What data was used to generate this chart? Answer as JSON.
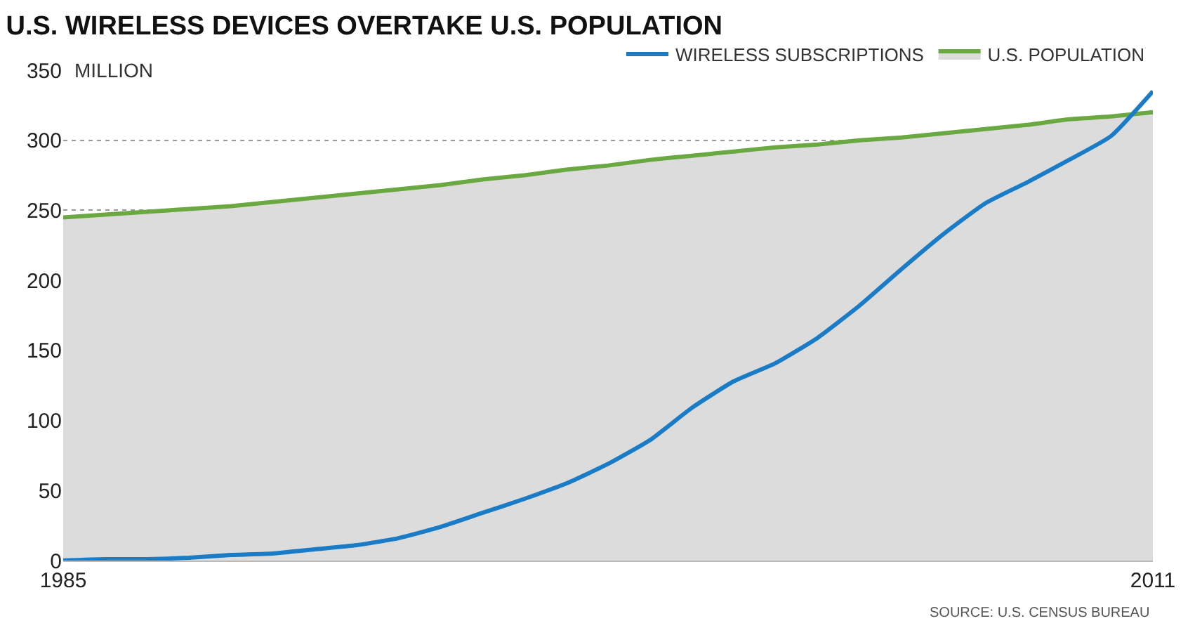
{
  "chart_data": {
    "type": "line",
    "title": "U.S. WIRELESS DEVICES OVERTAKE U.S. POPULATION",
    "ylabel": "MILLION",
    "x": [
      1985,
      1986,
      1987,
      1988,
      1989,
      1990,
      1991,
      1992,
      1993,
      1994,
      1995,
      1996,
      1997,
      1998,
      1999,
      2000,
      2001,
      2002,
      2003,
      2004,
      2005,
      2006,
      2007,
      2008,
      2009,
      2010,
      2011
    ],
    "series": [
      {
        "name": "WIRELESS SUBSCRIPTIONS",
        "color": "#1a7cc7",
        "values": [
          0,
          1,
          1,
          2,
          4,
          5,
          8,
          11,
          16,
          24,
          34,
          44,
          55,
          69,
          86,
          109,
          128,
          141,
          159,
          182,
          208,
          233,
          255,
          270,
          286,
          303,
          335
        ]
      },
      {
        "name": "U.S. POPULATION",
        "color": "#6aa842",
        "type": "area",
        "values": [
          245,
          247,
          249,
          251,
          253,
          256,
          259,
          262,
          265,
          268,
          272,
          275,
          279,
          282,
          286,
          289,
          292,
          295,
          297,
          300,
          302,
          305,
          308,
          311,
          315,
          317,
          320
        ]
      }
    ],
    "xlim": [
      1985,
      2011
    ],
    "xticks": [
      1985,
      2011
    ],
    "ylim": [
      0,
      350
    ],
    "yticks": [
      0,
      50,
      100,
      150,
      200,
      250,
      300,
      350
    ],
    "grid": "y",
    "legend": "top right",
    "annotations": [
      "SOURCE: U.S. CENSUS BUREAU"
    ]
  }
}
